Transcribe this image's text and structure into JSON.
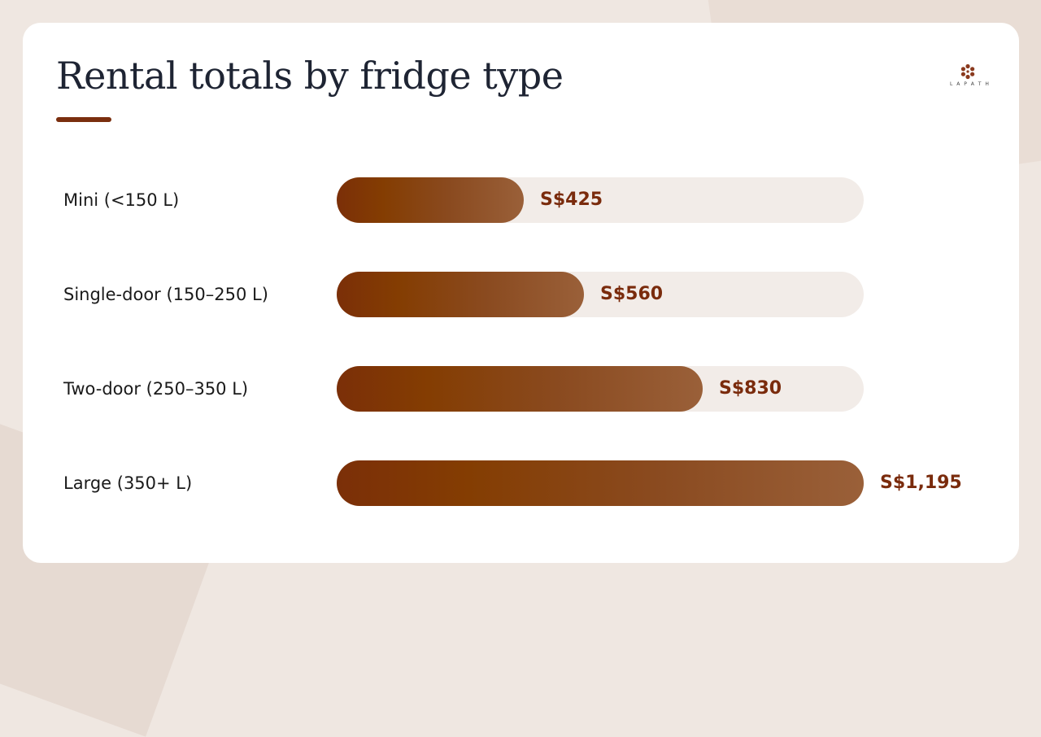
{
  "chart_data": {
    "type": "bar",
    "title": "Rental totals by fridge type",
    "orientation": "horizontal",
    "categories": [
      "Mini (<150 L)",
      "Single-door (150–250 L)",
      "Two-door (250–350 L)",
      "Large (350+ L)"
    ],
    "values": [
      425,
      560,
      830,
      1195
    ],
    "value_labels": [
      "S$425",
      "S$560",
      "S$830",
      "S$1,195"
    ],
    "xlim": [
      0,
      1195
    ],
    "grid": false
  },
  "colors": {
    "bar_start": "#7b2f08",
    "bar_end": "#9a6039",
    "track": "#f2ece8",
    "value_text": "#7a2b0c",
    "accent_underline": "#7a2e0e"
  },
  "logo": {
    "icon": "flower-logo-icon",
    "text": "L A P A T H"
  }
}
